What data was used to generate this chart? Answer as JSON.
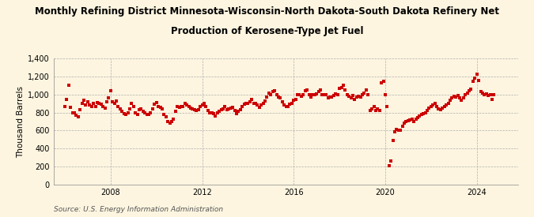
{
  "title_line1": "Monthly Refining District Minnesota-Wisconsin-North Dakota-South Dakota Refinery Net",
  "title_line2": "Production of Kerosene-Type Jet Fuel",
  "ylabel": "Thousand Barrels",
  "source": "Source: U.S. Energy Information Administration",
  "background_color": "#FDF5E0",
  "plot_bg_color": "#FDF5E0",
  "marker_color": "#CC0000",
  "marker": "s",
  "marker_size": 2.5,
  "ylim": [
    0,
    1400
  ],
  "yticks": [
    0,
    200,
    400,
    600,
    800,
    1000,
    1200,
    1400
  ],
  "ytick_labels": [
    "0",
    "200",
    "400",
    "600",
    "800",
    "1,000",
    "1,200",
    "1,400"
  ],
  "xlim": [
    2005.5,
    2025.8
  ],
  "xticks": [
    2008,
    2012,
    2016,
    2020,
    2024
  ],
  "grid_color": "#B0B0B0",
  "grid_style": "--",
  "title_fontsize": 8.5,
  "ylabel_fontsize": 7.5,
  "tick_fontsize": 7,
  "source_fontsize": 6.5,
  "data": [
    [
      2006.0,
      870
    ],
    [
      2006.083,
      950
    ],
    [
      2006.167,
      1100
    ],
    [
      2006.25,
      860
    ],
    [
      2006.333,
      800
    ],
    [
      2006.417,
      800
    ],
    [
      2006.5,
      770
    ],
    [
      2006.583,
      750
    ],
    [
      2006.667,
      830
    ],
    [
      2006.75,
      900
    ],
    [
      2006.833,
      940
    ],
    [
      2006.917,
      880
    ],
    [
      2007.0,
      920
    ],
    [
      2007.083,
      880
    ],
    [
      2007.167,
      870
    ],
    [
      2007.25,
      900
    ],
    [
      2007.333,
      870
    ],
    [
      2007.417,
      910
    ],
    [
      2007.5,
      900
    ],
    [
      2007.583,
      890
    ],
    [
      2007.667,
      870
    ],
    [
      2007.75,
      850
    ],
    [
      2007.833,
      920
    ],
    [
      2007.917,
      960
    ],
    [
      2008.0,
      1040
    ],
    [
      2008.083,
      920
    ],
    [
      2008.167,
      900
    ],
    [
      2008.25,
      930
    ],
    [
      2008.333,
      870
    ],
    [
      2008.417,
      840
    ],
    [
      2008.5,
      810
    ],
    [
      2008.583,
      790
    ],
    [
      2008.667,
      780
    ],
    [
      2008.75,
      800
    ],
    [
      2008.833,
      840
    ],
    [
      2008.917,
      900
    ],
    [
      2009.0,
      870
    ],
    [
      2009.083,
      800
    ],
    [
      2009.167,
      780
    ],
    [
      2009.25,
      830
    ],
    [
      2009.333,
      840
    ],
    [
      2009.417,
      810
    ],
    [
      2009.5,
      800
    ],
    [
      2009.583,
      780
    ],
    [
      2009.667,
      780
    ],
    [
      2009.75,
      800
    ],
    [
      2009.833,
      840
    ],
    [
      2009.917,
      890
    ],
    [
      2010.0,
      910
    ],
    [
      2010.083,
      870
    ],
    [
      2010.167,
      860
    ],
    [
      2010.25,
      840
    ],
    [
      2010.333,
      780
    ],
    [
      2010.417,
      750
    ],
    [
      2010.5,
      700
    ],
    [
      2010.583,
      680
    ],
    [
      2010.667,
      700
    ],
    [
      2010.75,
      730
    ],
    [
      2010.833,
      810
    ],
    [
      2010.917,
      870
    ],
    [
      2011.0,
      860
    ],
    [
      2011.083,
      870
    ],
    [
      2011.167,
      870
    ],
    [
      2011.25,
      900
    ],
    [
      2011.333,
      880
    ],
    [
      2011.417,
      870
    ],
    [
      2011.5,
      850
    ],
    [
      2011.583,
      840
    ],
    [
      2011.667,
      830
    ],
    [
      2011.75,
      820
    ],
    [
      2011.833,
      830
    ],
    [
      2011.917,
      870
    ],
    [
      2012.0,
      880
    ],
    [
      2012.083,
      900
    ],
    [
      2012.167,
      870
    ],
    [
      2012.25,
      820
    ],
    [
      2012.333,
      800
    ],
    [
      2012.417,
      800
    ],
    [
      2012.5,
      790
    ],
    [
      2012.583,
      760
    ],
    [
      2012.667,
      800
    ],
    [
      2012.75,
      810
    ],
    [
      2012.833,
      830
    ],
    [
      2012.917,
      840
    ],
    [
      2013.0,
      870
    ],
    [
      2013.083,
      830
    ],
    [
      2013.167,
      840
    ],
    [
      2013.25,
      850
    ],
    [
      2013.333,
      860
    ],
    [
      2013.417,
      820
    ],
    [
      2013.5,
      790
    ],
    [
      2013.583,
      810
    ],
    [
      2013.667,
      830
    ],
    [
      2013.75,
      870
    ],
    [
      2013.833,
      890
    ],
    [
      2013.917,
      900
    ],
    [
      2014.0,
      900
    ],
    [
      2014.083,
      920
    ],
    [
      2014.167,
      950
    ],
    [
      2014.25,
      900
    ],
    [
      2014.333,
      900
    ],
    [
      2014.417,
      880
    ],
    [
      2014.5,
      860
    ],
    [
      2014.583,
      880
    ],
    [
      2014.667,
      900
    ],
    [
      2014.75,
      930
    ],
    [
      2014.833,
      970
    ],
    [
      2014.917,
      1020
    ],
    [
      2015.0,
      1000
    ],
    [
      2015.083,
      1030
    ],
    [
      2015.167,
      1040
    ],
    [
      2015.25,
      1000
    ],
    [
      2015.333,
      970
    ],
    [
      2015.417,
      960
    ],
    [
      2015.5,
      920
    ],
    [
      2015.583,
      880
    ],
    [
      2015.667,
      870
    ],
    [
      2015.75,
      870
    ],
    [
      2015.833,
      890
    ],
    [
      2015.917,
      900
    ],
    [
      2016.0,
      940
    ],
    [
      2016.083,
      950
    ],
    [
      2016.167,
      1000
    ],
    [
      2016.25,
      1000
    ],
    [
      2016.333,
      980
    ],
    [
      2016.417,
      1000
    ],
    [
      2016.5,
      1040
    ],
    [
      2016.583,
      1050
    ],
    [
      2016.667,
      1000
    ],
    [
      2016.75,
      970
    ],
    [
      2016.833,
      1000
    ],
    [
      2016.917,
      1000
    ],
    [
      2017.0,
      1010
    ],
    [
      2017.083,
      1030
    ],
    [
      2017.167,
      1050
    ],
    [
      2017.25,
      1000
    ],
    [
      2017.333,
      1000
    ],
    [
      2017.417,
      1000
    ],
    [
      2017.5,
      960
    ],
    [
      2017.583,
      970
    ],
    [
      2017.667,
      970
    ],
    [
      2017.75,
      990
    ],
    [
      2017.833,
      1010
    ],
    [
      2017.917,
      1000
    ],
    [
      2018.0,
      1070
    ],
    [
      2018.083,
      1080
    ],
    [
      2018.167,
      1100
    ],
    [
      2018.25,
      1050
    ],
    [
      2018.333,
      1000
    ],
    [
      2018.417,
      980
    ],
    [
      2018.5,
      960
    ],
    [
      2018.583,
      990
    ],
    [
      2018.667,
      950
    ],
    [
      2018.75,
      970
    ],
    [
      2018.833,
      980
    ],
    [
      2018.917,
      970
    ],
    [
      2019.0,
      1000
    ],
    [
      2019.083,
      1020
    ],
    [
      2019.167,
      1050
    ],
    [
      2019.25,
      1000
    ],
    [
      2019.333,
      820
    ],
    [
      2019.417,
      840
    ],
    [
      2019.5,
      870
    ],
    [
      2019.583,
      820
    ],
    [
      2019.667,
      840
    ],
    [
      2019.75,
      820
    ],
    [
      2019.833,
      1130
    ],
    [
      2019.917,
      1150
    ],
    [
      2020.0,
      1000
    ],
    [
      2020.083,
      870
    ],
    [
      2020.167,
      210
    ],
    [
      2020.25,
      260
    ],
    [
      2020.333,
      490
    ],
    [
      2020.417,
      590
    ],
    [
      2020.5,
      610
    ],
    [
      2020.583,
      600
    ],
    [
      2020.667,
      600
    ],
    [
      2020.75,
      650
    ],
    [
      2020.833,
      680
    ],
    [
      2020.917,
      700
    ],
    [
      2021.0,
      710
    ],
    [
      2021.083,
      720
    ],
    [
      2021.167,
      730
    ],
    [
      2021.25,
      700
    ],
    [
      2021.333,
      730
    ],
    [
      2021.417,
      740
    ],
    [
      2021.5,
      760
    ],
    [
      2021.583,
      780
    ],
    [
      2021.667,
      790
    ],
    [
      2021.75,
      800
    ],
    [
      2021.833,
      820
    ],
    [
      2021.917,
      850
    ],
    [
      2022.0,
      870
    ],
    [
      2022.083,
      880
    ],
    [
      2022.167,
      900
    ],
    [
      2022.25,
      870
    ],
    [
      2022.333,
      840
    ],
    [
      2022.417,
      830
    ],
    [
      2022.5,
      850
    ],
    [
      2022.583,
      870
    ],
    [
      2022.667,
      880
    ],
    [
      2022.75,
      900
    ],
    [
      2022.833,
      940
    ],
    [
      2022.917,
      960
    ],
    [
      2023.0,
      980
    ],
    [
      2023.083,
      970
    ],
    [
      2023.167,
      990
    ],
    [
      2023.25,
      960
    ],
    [
      2023.333,
      940
    ],
    [
      2023.417,
      960
    ],
    [
      2023.5,
      1000
    ],
    [
      2023.583,
      1020
    ],
    [
      2023.667,
      1040
    ],
    [
      2023.75,
      1060
    ],
    [
      2023.833,
      1150
    ],
    [
      2023.917,
      1180
    ],
    [
      2024.0,
      1230
    ],
    [
      2024.083,
      1160
    ],
    [
      2024.167,
      1030
    ],
    [
      2024.25,
      1020
    ],
    [
      2024.333,
      1000
    ],
    [
      2024.417,
      1010
    ],
    [
      2024.5,
      990
    ],
    [
      2024.583,
      1000
    ],
    [
      2024.667,
      950
    ],
    [
      2024.75,
      1000
    ]
  ]
}
